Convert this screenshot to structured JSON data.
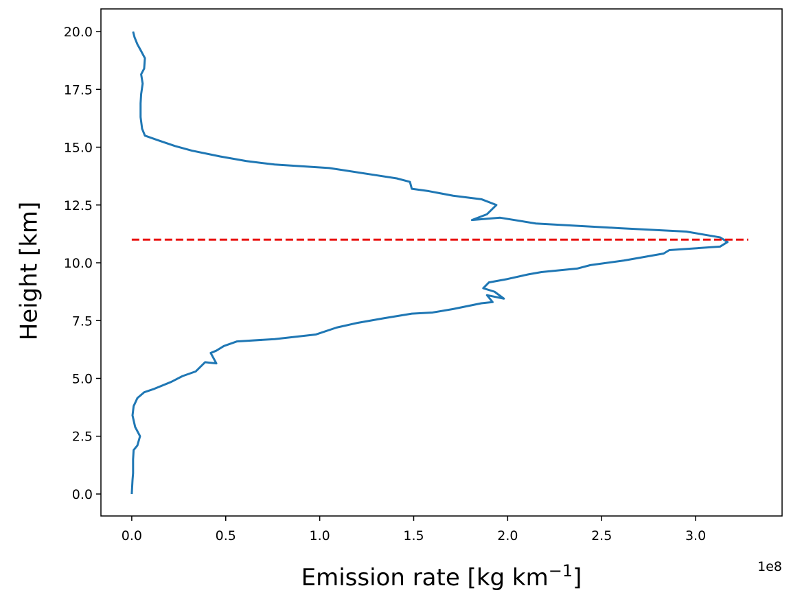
{
  "chart_data": {
    "type": "line",
    "xlabel": {
      "text": "Emission rate [kg km",
      "superscript": "−1",
      "suffix": "]"
    },
    "ylabel": "Height [km]",
    "x_offset_label": "1e8",
    "xlim": [
      -0.164,
      3.46
    ],
    "ylim": [
      -0.95,
      20.98
    ],
    "xticks": [
      {
        "value": 0,
        "label": "0.0"
      },
      0.5,
      {
        "value": 1,
        "label": "1.0"
      },
      1.5,
      {
        "value": 2,
        "label": "2.0"
      },
      2.5,
      {
        "value": 3,
        "label": "3.0"
      }
    ],
    "yticks": [
      {
        "value": 0,
        "label": "0.0"
      },
      2.5,
      {
        "value": 5,
        "label": "5.0"
      },
      7.5,
      {
        "value": 10,
        "label": "10.0"
      },
      12.5,
      {
        "value": 15,
        "label": "15.0"
      },
      17.5,
      {
        "value": 20,
        "label": "20.0"
      }
    ],
    "series": [
      {
        "color": "#1f77b4",
        "x": [
          0,
          0.004,
          0.007,
          0.007,
          0.01,
          0.03,
          0.044,
          0.018,
          0.004,
          0.01,
          0.03,
          0.066,
          0.12,
          0.21,
          0.27,
          0.34,
          0.39,
          0.45,
          0.42,
          0.45,
          0.49,
          0.56,
          0.76,
          0.98,
          1.09,
          1.2,
          1.34,
          1.49,
          1.6,
          1.71,
          1.86,
          1.92,
          1.89,
          1.98,
          1.93,
          1.87,
          1.9,
          2.0,
          2.11,
          2.18,
          2.37,
          2.44,
          2.62,
          2.83,
          2.86,
          3.13,
          3.17,
          3.13,
          2.95,
          2.59,
          2.15,
          1.96,
          1.81,
          1.89,
          1.94,
          1.86,
          1.71,
          1.58,
          1.49,
          1.48,
          1.41,
          1.29,
          1.05,
          0.76,
          0.61,
          0.47,
          0.32,
          0.23,
          0.14,
          0.07,
          0.055,
          0.047,
          0.047,
          0.05,
          0.058,
          0.05,
          0.066,
          0.07,
          0.047,
          0.03,
          0.015,
          0.007
        ],
        "y": [
          0,
          0.6,
          0.9,
          1.5,
          1.9,
          2.1,
          2.5,
          2.9,
          3.4,
          3.8,
          4.15,
          4.4,
          4.55,
          4.85,
          5.1,
          5.3,
          5.7,
          5.65,
          6.1,
          6.2,
          6.4,
          6.6,
          6.7,
          6.9,
          7.2,
          7.4,
          7.6,
          7.8,
          7.85,
          8.0,
          8.25,
          8.3,
          8.6,
          8.45,
          8.75,
          8.9,
          9.15,
          9.3,
          9.5,
          9.6,
          9.75,
          9.9,
          10.1,
          10.4,
          10.55,
          10.7,
          10.9,
          11.1,
          11.35,
          11.5,
          11.7,
          11.95,
          11.85,
          12.1,
          12.5,
          12.75,
          12.9,
          13.1,
          13.2,
          13.5,
          13.65,
          13.8,
          14.1,
          14.25,
          14.4,
          14.6,
          14.85,
          15.05,
          15.3,
          15.5,
          15.8,
          16.3,
          16.9,
          17.3,
          17.75,
          18.15,
          18.4,
          18.85,
          19.2,
          19.45,
          19.75,
          20.0
        ]
      }
    ],
    "hline": {
      "y": 11,
      "xmin": 0,
      "xmax": 3.28,
      "color": "#e8100f",
      "dashed": true
    }
  }
}
